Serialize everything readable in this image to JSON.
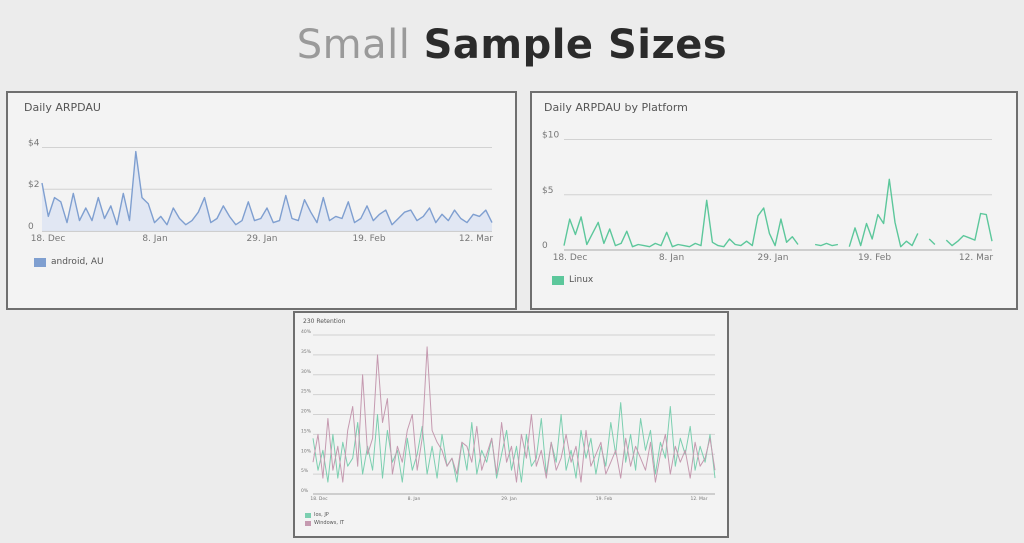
{
  "page": {
    "title_light": "Small",
    "title_bold": "Sample Sizes"
  },
  "chart_data": [
    {
      "type": "line",
      "title": "Daily ARPDAU",
      "x_ticks": [
        "18. Dec",
        "8. Jan",
        "29. Jan",
        "19. Feb",
        "12. Mar"
      ],
      "y_ticks": [
        "0",
        "$2",
        "$4"
      ],
      "ylim": [
        0,
        4.5
      ],
      "grid": true,
      "legend_position": "bottom-left",
      "series": [
        {
          "name": "android, AU",
          "color": "#7f9fd0",
          "fill": "#dfe6f3",
          "values": [
            2.3,
            0.7,
            1.6,
            1.4,
            0.4,
            1.8,
            0.5,
            1.1,
            0.5,
            1.6,
            0.6,
            1.2,
            0.3,
            1.8,
            0.5,
            3.8,
            1.6,
            1.3,
            0.4,
            0.7,
            0.3,
            1.1,
            0.6,
            0.3,
            0.5,
            0.9,
            1.6,
            0.4,
            0.6,
            1.2,
            0.7,
            0.3,
            0.5,
            1.4,
            0.5,
            0.6,
            1.1,
            0.4,
            0.5,
            1.7,
            0.6,
            0.5,
            1.5,
            0.9,
            0.4,
            1.6,
            0.5,
            0.7,
            0.6,
            1.4,
            0.4,
            0.6,
            1.2,
            0.5,
            0.8,
            1.0,
            0.3,
            0.6,
            0.9,
            1.0,
            0.5,
            0.7,
            1.1,
            0.4,
            0.8,
            0.5,
            1.0,
            0.6,
            0.4,
            0.8,
            0.7,
            1.0,
            0.4
          ]
        }
      ]
    },
    {
      "type": "line",
      "title": "Daily ARPDAU by Platform",
      "x_ticks": [
        "18. Dec",
        "8. Jan",
        "29. Jan",
        "19. Feb",
        "12. Mar"
      ],
      "y_ticks": [
        "0",
        "$5",
        "$10"
      ],
      "ylim": [
        0,
        10.5
      ],
      "grid": true,
      "legend_position": "bottom-left",
      "series": [
        {
          "name": "Linux",
          "color": "#5cc79b",
          "fill": "none",
          "values": [
            0.4,
            2.8,
            1.4,
            3.0,
            0.5,
            1.5,
            2.5,
            0.6,
            1.9,
            0.4,
            0.6,
            1.7,
            0.3,
            0.5,
            0.4,
            0.3,
            0.6,
            0.4,
            1.6,
            0.3,
            0.5,
            0.4,
            0.3,
            0.6,
            0.4,
            4.5,
            0.7,
            0.4,
            0.3,
            1.0,
            0.5,
            0.4,
            0.8,
            0.4,
            3.1,
            3.8,
            1.5,
            0.4,
            2.8,
            0.7,
            1.2,
            0.5,
            null,
            null,
            0.5,
            0.4,
            0.6,
            0.4,
            0.5,
            null,
            0.3,
            2.0,
            0.4,
            2.4,
            1.0,
            3.2,
            2.4,
            6.4,
            2.5,
            0.3,
            0.8,
            0.4,
            1.5,
            null,
            1.0,
            0.5,
            null,
            0.9,
            0.4,
            0.8,
            1.3,
            1.1,
            0.9,
            3.3,
            3.2,
            0.8
          ]
        }
      ]
    },
    {
      "type": "line",
      "title": "230 Retention",
      "x_ticks": [
        "18. Dec",
        "8. Jan",
        "29. Jan",
        "19. Feb",
        "12. Mar"
      ],
      "y_ticks": [
        "0%",
        "5%",
        "10%",
        "15%",
        "20%",
        "25%",
        "30%",
        "35%",
        "40%"
      ],
      "ylim": [
        0,
        40
      ],
      "grid": true,
      "legend_position": "bottom-left",
      "series": [
        {
          "name": "Ios, JP",
          "color": "#7ccfb0",
          "values": [
            14,
            6,
            11,
            3,
            15,
            4,
            13,
            7,
            9,
            18,
            5,
            12,
            6,
            20,
            4,
            16,
            8,
            11,
            3,
            14,
            6,
            10,
            17,
            5,
            12,
            4,
            15,
            7,
            9,
            3,
            13,
            6,
            18,
            5,
            11,
            8,
            14,
            4,
            10,
            16,
            6,
            12,
            3,
            15,
            7,
            9,
            19,
            5,
            13,
            8,
            20,
            6,
            11,
            4,
            16,
            9,
            14,
            5,
            12,
            7,
            18,
            10,
            23,
            8,
            15,
            6,
            19,
            11,
            16,
            5,
            13,
            9,
            22,
            7,
            14,
            10,
            17,
            6,
            12,
            8,
            15,
            4
          ]
        },
        {
          "name": "Windows, IT",
          "color": "#c59ab0",
          "values": [
            8,
            15,
            4,
            19,
            6,
            12,
            3,
            16,
            22,
            7,
            30,
            10,
            14,
            35,
            18,
            24,
            5,
            12,
            8,
            16,
            20,
            6,
            14,
            37,
            16,
            13,
            11,
            7,
            9,
            5,
            13,
            12,
            8,
            17,
            6,
            10,
            14,
            5,
            18,
            8,
            12,
            3,
            15,
            9,
            20,
            7,
            11,
            4,
            13,
            6,
            9,
            15,
            8,
            12,
            3,
            16,
            7,
            10,
            13,
            5,
            8,
            11,
            4,
            14,
            7,
            12,
            9,
            6,
            13,
            3,
            10,
            15,
            5,
            12,
            8,
            11,
            4,
            13,
            7,
            9,
            14,
            6
          ]
        }
      ]
    }
  ]
}
